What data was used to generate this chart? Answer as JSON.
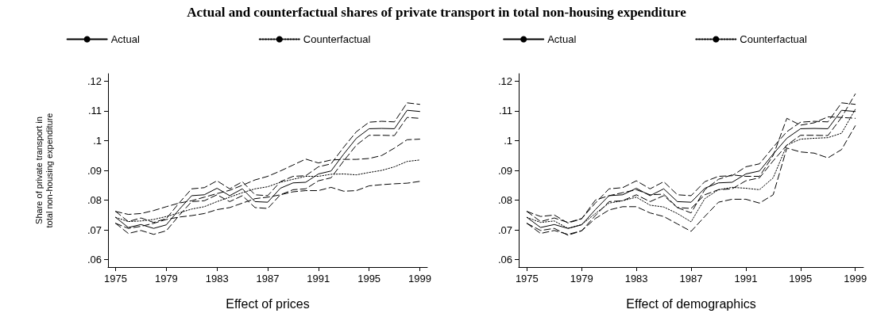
{
  "chart_data": [
    {
      "type": "line",
      "title": "Actual and counterfactual shares of private transport in total non-housing expenditure",
      "xlabel": "Effect of prices",
      "ylabel": "Share of private transport in total non-housing expenditure",
      "x": [
        1975,
        1976,
        1977,
        1978,
        1979,
        1980,
        1981,
        1982,
        1983,
        1984,
        1985,
        1986,
        1987,
        1988,
        1989,
        1990,
        1991,
        1992,
        1993,
        1994,
        1995,
        1996,
        1997,
        1998,
        1999
      ],
      "xlim": [
        1974.4,
        1999.6
      ],
      "xticks": [
        1975,
        1979,
        1983,
        1987,
        1991,
        1995,
        1999
      ],
      "ylim": [
        0.0575,
        0.1225
      ],
      "yticks": [
        {
          "value": 0.06,
          "label": ".06"
        },
        {
          "value": 0.07,
          "label": ".07"
        },
        {
          "value": 0.08,
          "label": ".08"
        },
        {
          "value": 0.09,
          "label": ".09"
        },
        {
          "value": 0.1,
          "label": ".1"
        },
        {
          "value": 0.11,
          "label": ".11"
        },
        {
          "value": 0.12,
          "label": ".12"
        }
      ],
      "grid": false,
      "legend": "top",
      "marker": "none",
      "series": [
        {
          "name": "Actual",
          "color": "#000000",
          "line_style": "solid",
          "values": [
            0.0742,
            0.0708,
            0.0718,
            0.0705,
            0.0717,
            0.0768,
            0.0815,
            0.0818,
            0.084,
            0.0815,
            0.0838,
            0.0795,
            0.0793,
            0.084,
            0.0858,
            0.086,
            0.0888,
            0.0898,
            0.0955,
            0.1008,
            0.104,
            0.1041,
            0.104,
            0.1102,
            0.1098
          ]
        },
        {
          "name": "Counterfactual",
          "color": "#000000",
          "line_style": "dotted",
          "values": [
            0.0742,
            0.0728,
            0.073,
            0.0735,
            0.0745,
            0.0757,
            0.077,
            0.0778,
            0.0795,
            0.081,
            0.0825,
            0.0838,
            0.0845,
            0.086,
            0.087,
            0.088,
            0.088,
            0.0887,
            0.0888,
            0.0885,
            0.0893,
            0.09,
            0.0912,
            0.093,
            0.0935
          ]
        },
        {
          "color": "#000000",
          "line_style": "dashed",
          "values": [
            0.0762,
            0.0728,
            0.074,
            0.0725,
            0.0738,
            0.079,
            0.0838,
            0.0842,
            0.0865,
            0.0838,
            0.0862,
            0.0818,
            0.0815,
            0.0862,
            0.088,
            0.0882,
            0.0912,
            0.0922,
            0.0978,
            0.103,
            0.1062,
            0.1065,
            0.1063,
            0.1127,
            0.1122
          ]
        },
        {
          "color": "#000000",
          "line_style": "dashed",
          "values": [
            0.0722,
            0.0688,
            0.0698,
            0.0685,
            0.0697,
            0.0748,
            0.0795,
            0.0798,
            0.0818,
            0.0795,
            0.0815,
            0.0775,
            0.0772,
            0.0818,
            0.0835,
            0.0838,
            0.0865,
            0.0875,
            0.0932,
            0.0985,
            0.1018,
            0.1018,
            0.1017,
            0.1078,
            0.1075
          ]
        },
        {
          "color": "#000000",
          "line_style": "dashed",
          "values": [
            0.0762,
            0.0752,
            0.0755,
            0.0765,
            0.0778,
            0.079,
            0.0798,
            0.081,
            0.0822,
            0.0833,
            0.085,
            0.0868,
            0.088,
            0.0898,
            0.0918,
            0.0938,
            0.0925,
            0.0935,
            0.0937,
            0.0937,
            0.094,
            0.095,
            0.0975,
            0.1003,
            0.1005
          ]
        },
        {
          "color": "#000000",
          "line_style": "dashed",
          "values": [
            0.0722,
            0.0705,
            0.0712,
            0.0722,
            0.0735,
            0.0743,
            0.0748,
            0.0755,
            0.0768,
            0.0775,
            0.079,
            0.0805,
            0.081,
            0.0818,
            0.0828,
            0.0832,
            0.0832,
            0.0843,
            0.083,
            0.0832,
            0.0848,
            0.0852,
            0.0855,
            0.0857,
            0.0863
          ]
        }
      ]
    },
    {
      "type": "line",
      "xlabel": "Effect of demographics",
      "x": [
        1975,
        1976,
        1977,
        1978,
        1979,
        1980,
        1981,
        1982,
        1983,
        1984,
        1985,
        1986,
        1987,
        1988,
        1989,
        1990,
        1991,
        1992,
        1993,
        1994,
        1995,
        1996,
        1997,
        1998,
        1999
      ],
      "xlim": [
        1974.4,
        1999.6
      ],
      "xticks": [
        1975,
        1979,
        1983,
        1987,
        1991,
        1995,
        1999
      ],
      "ylim": [
        0.0575,
        0.1225
      ],
      "yticks": [
        {
          "value": 0.06,
          "label": ".06"
        },
        {
          "value": 0.07,
          "label": ".07"
        },
        {
          "value": 0.08,
          "label": ".08"
        },
        {
          "value": 0.09,
          "label": ".09"
        },
        {
          "value": 0.1,
          "label": ".1"
        },
        {
          "value": 0.11,
          "label": ".11"
        },
        {
          "value": 0.12,
          "label": ".12"
        }
      ],
      "grid": false,
      "legend": "top",
      "marker": "none",
      "series": [
        {
          "name": "Actual",
          "color": "#000000",
          "line_style": "solid",
          "values": [
            0.0742,
            0.0708,
            0.0718,
            0.0705,
            0.0717,
            0.0768,
            0.0815,
            0.0818,
            0.084,
            0.0815,
            0.0838,
            0.0795,
            0.0793,
            0.084,
            0.0858,
            0.086,
            0.0888,
            0.0898,
            0.0955,
            0.1008,
            0.104,
            0.1041,
            0.104,
            0.1102,
            0.1098
          ]
        },
        {
          "name": "Counterfactual",
          "color": "#000000",
          "line_style": "dotted",
          "values": [
            0.0742,
            0.0725,
            0.073,
            0.0705,
            0.0718,
            0.0755,
            0.079,
            0.0798,
            0.081,
            0.0783,
            0.0777,
            0.0755,
            0.0727,
            0.0805,
            0.0835,
            0.0843,
            0.084,
            0.0835,
            0.0875,
            0.0985,
            0.1005,
            0.1008,
            0.101,
            0.1025,
            0.1105
          ]
        },
        {
          "color": "#000000",
          "line_style": "dashed",
          "values": [
            0.0762,
            0.0728,
            0.074,
            0.0725,
            0.0738,
            0.079,
            0.0838,
            0.0842,
            0.0865,
            0.0838,
            0.0862,
            0.0818,
            0.0815,
            0.0862,
            0.088,
            0.0882,
            0.0912,
            0.0922,
            0.0978,
            0.103,
            0.1062,
            0.1065,
            0.1063,
            0.1127,
            0.1122
          ]
        },
        {
          "color": "#000000",
          "line_style": "dashed",
          "values": [
            0.0722,
            0.0688,
            0.0698,
            0.0685,
            0.0697,
            0.0748,
            0.0795,
            0.0798,
            0.0818,
            0.0795,
            0.0815,
            0.0775,
            0.0772,
            0.0818,
            0.0835,
            0.0838,
            0.0865,
            0.0875,
            0.0932,
            0.0985,
            0.1018,
            0.1018,
            0.1017,
            0.1078,
            0.1075
          ]
        },
        {
          "color": "#000000",
          "line_style": "dashed",
          "values": [
            0.0762,
            0.0745,
            0.075,
            0.0723,
            0.0737,
            0.08,
            0.0815,
            0.0825,
            0.0835,
            0.0818,
            0.082,
            0.0775,
            0.0757,
            0.0835,
            0.087,
            0.0885,
            0.088,
            0.088,
            0.095,
            0.1075,
            0.1052,
            0.106,
            0.108,
            0.1078,
            0.1157
          ]
        },
        {
          "color": "#000000",
          "line_style": "dashed",
          "values": [
            0.0722,
            0.0698,
            0.0705,
            0.0682,
            0.0697,
            0.0738,
            0.0767,
            0.0778,
            0.0778,
            0.0757,
            0.0745,
            0.072,
            0.0695,
            0.0745,
            0.0793,
            0.0803,
            0.0803,
            0.079,
            0.0818,
            0.0975,
            0.0962,
            0.0958,
            0.0942,
            0.097,
            0.105
          ]
        }
      ]
    }
  ]
}
